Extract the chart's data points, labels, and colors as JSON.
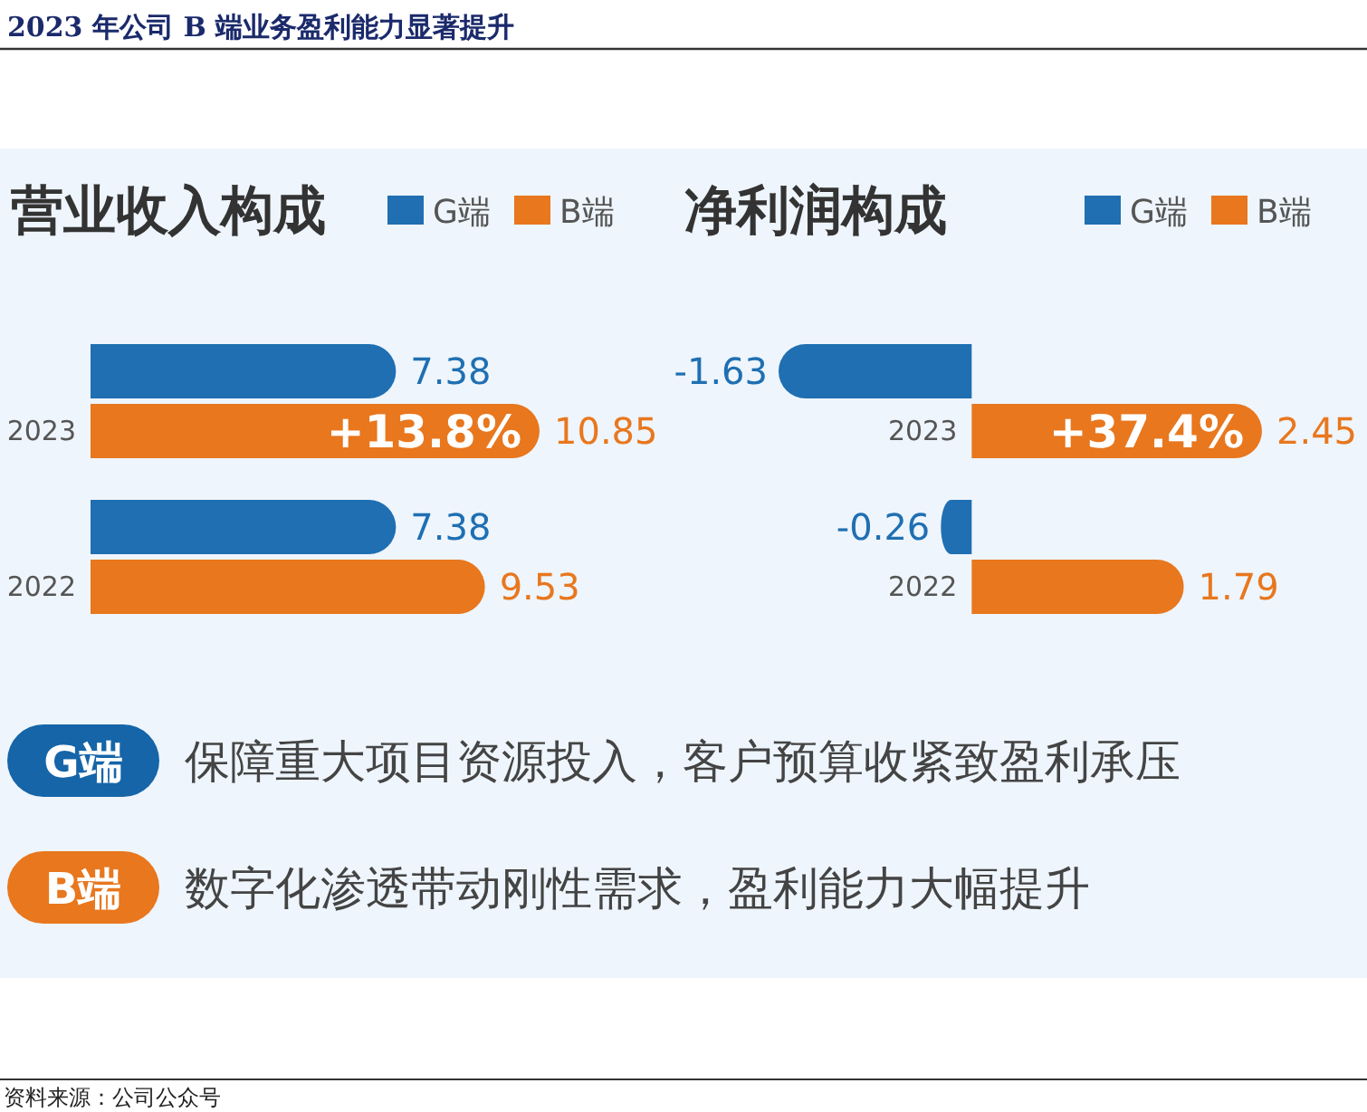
{
  "chart_data": [
    {
      "type": "bar",
      "title": "营业收入构成",
      "orientation": "horizontal",
      "legend": "top right",
      "data_labels": true,
      "categories": [
        "2023",
        "2022"
      ],
      "series": [
        {
          "name": "G端",
          "color": "#1f6fb2",
          "values": [
            7.38,
            7.38
          ]
        },
        {
          "name": "B端",
          "color": "#e8771e",
          "values": [
            10.85,
            9.53
          ]
        }
      ],
      "annotations": [
        {
          "text": "+13.8%",
          "x": 10.85,
          "y": "2023"
        }
      ]
    },
    {
      "type": "bar",
      "title": "净利润构成",
      "orientation": "horizontal",
      "legend": "top right",
      "data_labels": true,
      "categories": [
        "2023",
        "2022"
      ],
      "series": [
        {
          "name": "G端",
          "color": "#1f6fb2",
          "values": [
            -1.63,
            -0.26
          ]
        },
        {
          "name": "B端",
          "color": "#e8771e",
          "values": [
            2.45,
            1.79
          ]
        }
      ],
      "annotations": [
        {
          "text": "+37.4%",
          "x": 2.45,
          "y": "2023"
        }
      ]
    },
    {
      "type": "other",
      "title": "2023 年公司 B 端业务盈利能力显著提升",
      "colors": [
        "#1565a8",
        "#e8771e"
      ],
      "annotations": [
        "G端",
        "保障重大项目资源投入，客户预算收紧致盈利承压",
        "B端",
        "数字化渗透带动刚性需求，盈利能力大幅提升",
        "资料来源：公司公众号"
      ]
    }
  ]
}
